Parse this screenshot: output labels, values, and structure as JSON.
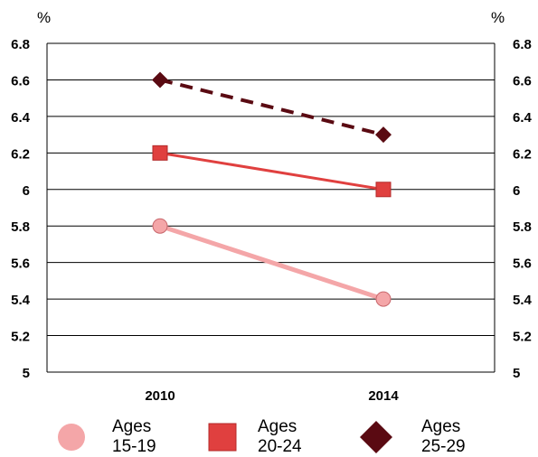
{
  "chart_data": {
    "type": "line",
    "x": [
      "2010",
      "2014"
    ],
    "ylim": [
      5,
      6.8
    ],
    "yticks": [
      "5",
      "5.2",
      "5.4",
      "5.6",
      "5.8",
      "6",
      "6.2",
      "6.4",
      "6.6",
      "6.8"
    ],
    "unit_left": "%",
    "unit_right": "%",
    "grid": true,
    "legend_position": "bottom",
    "series": [
      {
        "name": "Ages\n15-19",
        "values": [
          5.8,
          5.4
        ],
        "color": "#f4a6a8",
        "marker": "circle",
        "line": "solid"
      },
      {
        "name": "Ages\n20-24",
        "values": [
          6.2,
          6.0
        ],
        "color": "#e0403f",
        "marker": "square",
        "line": "solid"
      },
      {
        "name": "Ages\n25-29",
        "values": [
          6.6,
          6.3
        ],
        "color": "#5a0a12",
        "marker": "diamond",
        "line": "dashed"
      }
    ]
  }
}
